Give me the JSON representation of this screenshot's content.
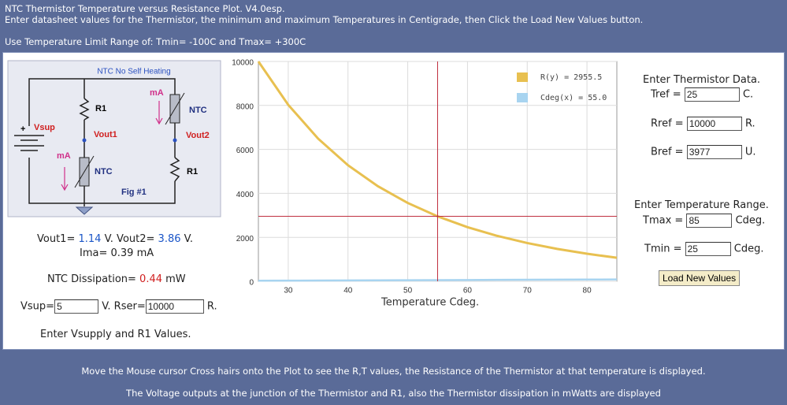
{
  "header": {
    "title": "NTC Thermistor Temperature versus Resistance Plot. V4.0esp.",
    "instructions": "Enter datasheet values for the Thermistor, the minimum and maximum Temperatures in Centigrade, then Click the Load New Values button.",
    "range_note": "Use Temperature Limit Range of: Tmin= -100C and Tmax= +300C"
  },
  "diagram": {
    "title": "NTC No Self Heating",
    "current_top": "mA",
    "r1_top": "R1",
    "ntc_top": "NTC",
    "plus": "+",
    "vsup": "Vsup",
    "vout1": "Vout1",
    "vout2": "Vout2",
    "current_bottom": "mA",
    "ntc_bottom": "NTC",
    "r1_bottom": "R1",
    "figure": "Fig #1"
  },
  "readout": {
    "vout1_label": "Vout1=",
    "vout1": 1.14,
    "vout1_unit": "V. Vout2=",
    "vout2": 3.86,
    "vout2_unit": "V.",
    "ima_label": "Ima=",
    "ima": 0.39,
    "ima_unit": "mA",
    "dissipation_label": "NTC Dissipation=",
    "dissipation": 0.44,
    "dissipation_unit": "mW"
  },
  "supply": {
    "vsup_label": "Vsup=",
    "vsup": 5,
    "rser_label": "V. Rser=",
    "rser": 10000,
    "rser_unit": "R.",
    "hint": "Enter Vsupply and R1 Values."
  },
  "thermistor": {
    "heading": "Enter Thermistor Data.",
    "tref_label": "Tref =",
    "tref": 25,
    "tref_unit": "C.",
    "rref_label": "Rref =",
    "rref": 10000,
    "rref_unit": "R.",
    "bref_label": "Bref =",
    "bref": 3977,
    "bref_unit": "U."
  },
  "range": {
    "heading": "Enter Temperature Range.",
    "tmax_label": "Tmax =",
    "tmax": 85,
    "tmax_unit": "Cdeg.",
    "tmin_label": "Tmin =",
    "tmin": 25,
    "tmin_unit": "Cdeg.",
    "button": "Load New Values"
  },
  "chart_data": {
    "type": "line",
    "xlabel": "Temperature Cdeg.",
    "x": [
      25,
      30,
      35,
      40,
      45,
      50,
      55,
      60,
      65,
      70,
      75,
      80,
      85
    ],
    "series": [
      {
        "name": "R(y) = 2955.5",
        "color": "#e8c050",
        "values": [
          10000,
          8025,
          6488,
          5280,
          4324,
          3563,
          2954,
          2463,
          2065,
          1740,
          1473,
          1253,
          1070
        ]
      },
      {
        "name": "Cdeg(x) = 55.0",
        "color": "#a8d4f0",
        "values": [
          25,
          30,
          35,
          40,
          45,
          50,
          55,
          60,
          65,
          70,
          75,
          80,
          85
        ]
      }
    ],
    "xlim": [
      25,
      85
    ],
    "ylim": [
      0,
      10000
    ],
    "xticks": [
      30,
      40,
      50,
      60,
      70,
      80
    ],
    "yticks": [
      0,
      2000,
      4000,
      6000,
      8000,
      10000
    ],
    "grid": true,
    "crosshair": {
      "x": 55,
      "y": 2955.5,
      "color": "#c03040"
    }
  },
  "footer": {
    "line1": "Move the Mouse cursor Cross hairs onto the Plot to see the R,T values, the Resistance of the Thermistor at that temperature is displayed.",
    "line2": "The Voltage outputs at the junction of the Thermistor and R1, also the Thermistor dissipation in mWatts are displayed"
  }
}
